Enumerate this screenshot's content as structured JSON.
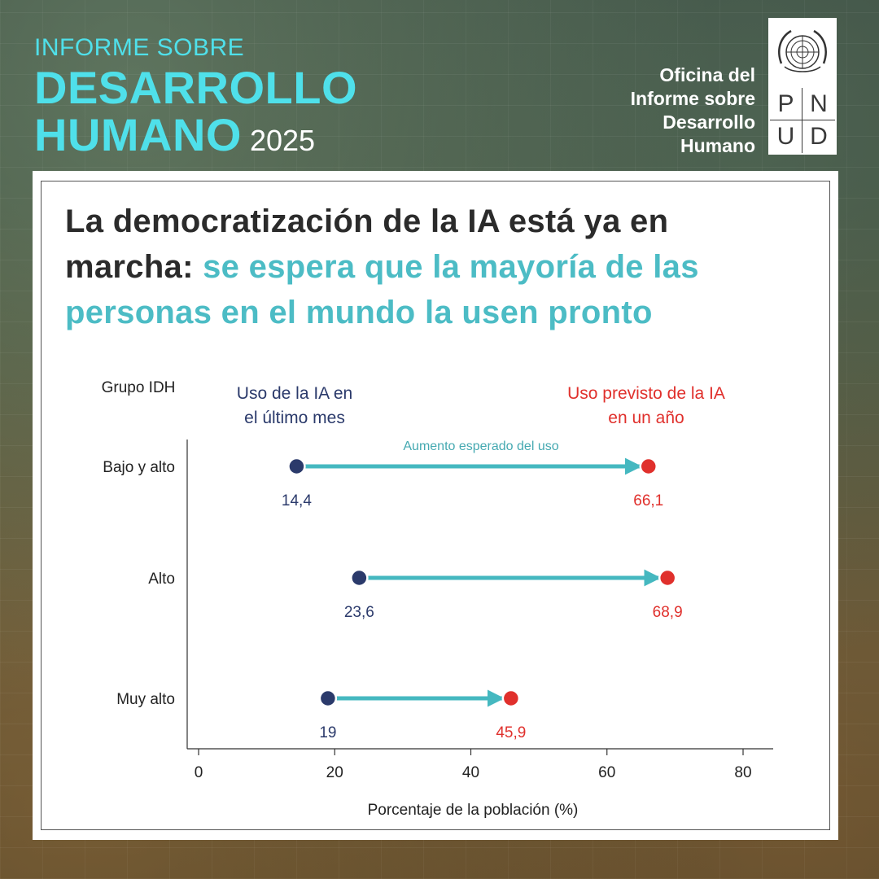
{
  "brand": {
    "line1": "INFORME SOBRE",
    "line2": "DESARROLLO",
    "line3": "HUMANO",
    "year": "2025"
  },
  "office": {
    "line1": "Oficina del",
    "line2": "Informe sobre",
    "line3": "Desarrollo",
    "line4": "Humano"
  },
  "undp_letters": [
    "P",
    "N",
    "U",
    "D"
  ],
  "headline": {
    "part1": "La democratización de la IA está ya en marcha: ",
    "part2": "se espera que la mayoría de las personas en el mundo la usen pronto"
  },
  "colors": {
    "current": "#2b3a6b",
    "expected": "#e0302c",
    "arrow": "#45b8c0",
    "accent": "#4fe0ea"
  },
  "chart_data": {
    "type": "dumbbell",
    "group_header": "Grupo IDH",
    "legend_current": [
      "Uso de la IA en",
      "el último mes"
    ],
    "legend_expected": [
      "Uso previsto de la IA",
      "en un año"
    ],
    "arrow_annotation": "Aumento esperado del uso",
    "xlabel": "Porcentaje de la población (%)",
    "xlim": [
      0,
      80
    ],
    "xticks": [
      0,
      20,
      40,
      60,
      80
    ],
    "categories": [
      "Bajo y alto",
      "Alto",
      "Muy alto"
    ],
    "series": [
      {
        "name": "Uso de la IA en el último mes",
        "values": [
          14.4,
          23.6,
          19
        ],
        "labels": [
          "14,4",
          "23,6",
          "19"
        ]
      },
      {
        "name": "Uso previsto de la IA en un año",
        "values": [
          66.1,
          68.9,
          45.9
        ],
        "labels": [
          "66,1",
          "68,9",
          "45,9"
        ]
      }
    ]
  }
}
